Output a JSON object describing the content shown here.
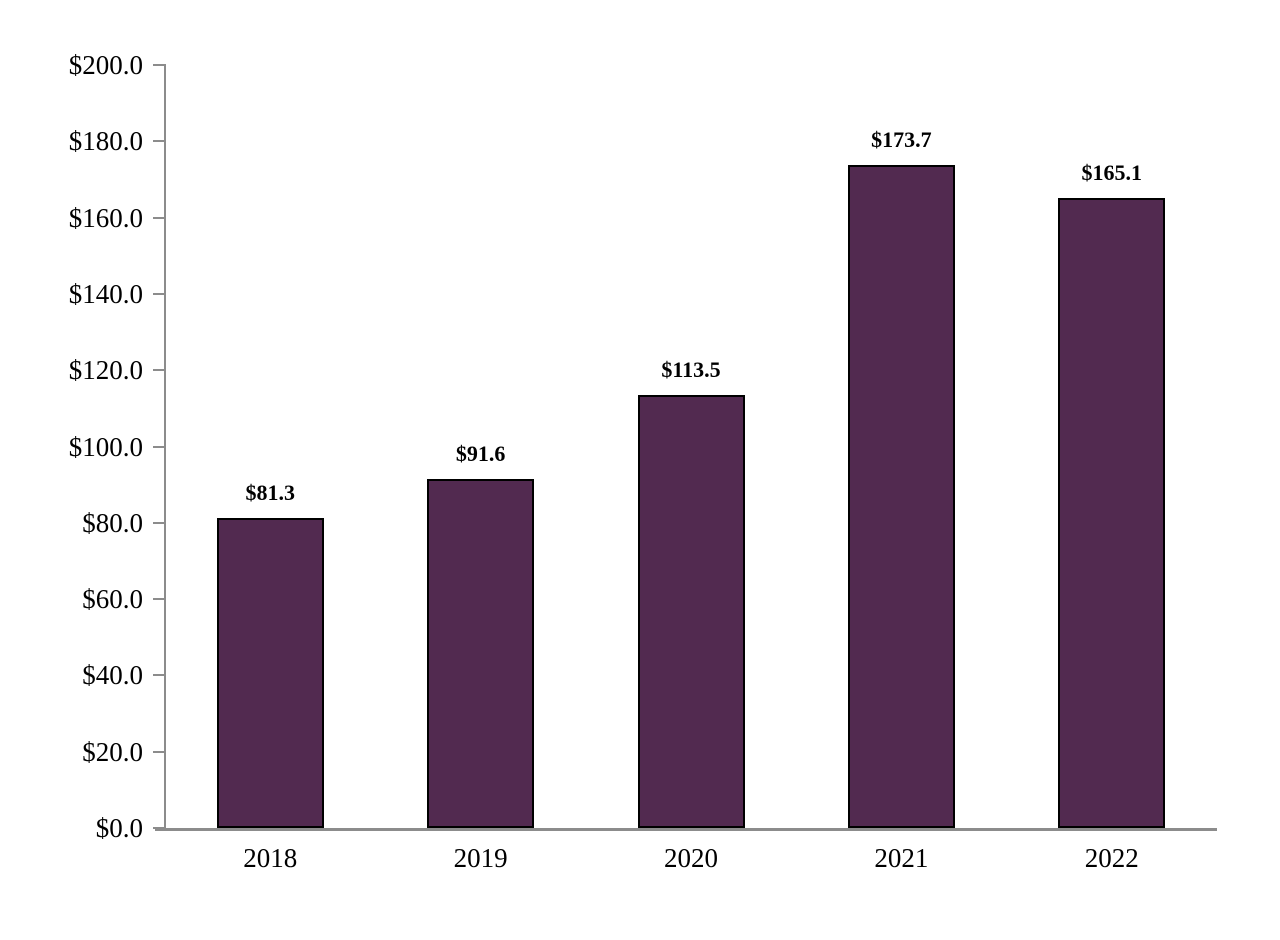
{
  "chart_data": {
    "type": "bar",
    "categories": [
      "2018",
      "2019",
      "2020",
      "2021",
      "2022"
    ],
    "values": [
      81.3,
      91.6,
      113.5,
      173.7,
      165.1
    ],
    "value_labels": [
      "$81.3",
      "$91.6",
      "$113.5",
      "$173.7",
      "$165.1"
    ],
    "ylim": [
      0,
      200
    ],
    "ytick_step": 20,
    "ytick_labels": [
      "$0.0",
      "$20.0",
      "$40.0",
      "$60.0",
      "$80.0",
      "$100.0",
      "$120.0",
      "$140.0",
      "$160.0",
      "$180.0",
      "$200.0"
    ],
    "grid": false,
    "legend_position": "none",
    "colors": {
      "bar_fill": "#522A50",
      "bar_border": "#000000",
      "axis": "#8C8C8C",
      "text": "#000000",
      "background": "#FFFFFF"
    }
  }
}
